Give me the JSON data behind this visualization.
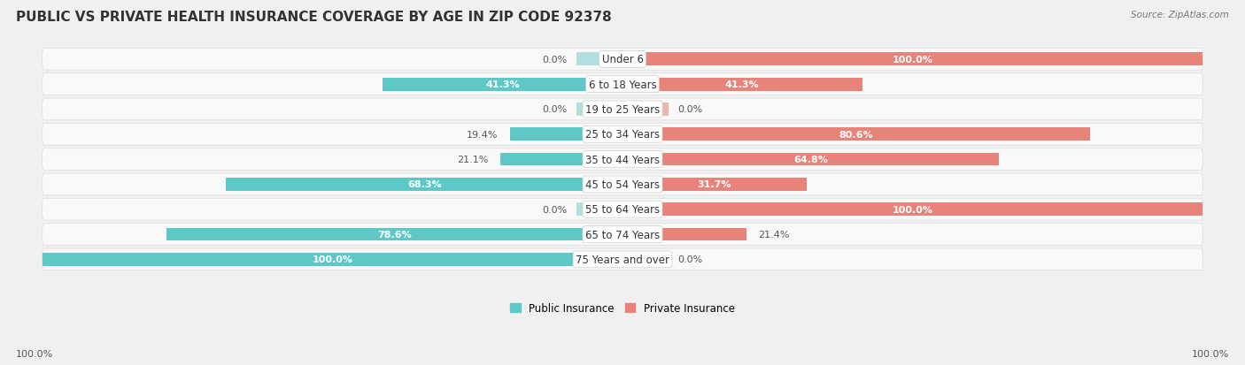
{
  "title": "PUBLIC VS PRIVATE HEALTH INSURANCE COVERAGE BY AGE IN ZIP CODE 92378",
  "source": "Source: ZipAtlas.com",
  "categories": [
    "Under 6",
    "6 to 18 Years",
    "19 to 25 Years",
    "25 to 34 Years",
    "35 to 44 Years",
    "45 to 54 Years",
    "55 to 64 Years",
    "65 to 74 Years",
    "75 Years and over"
  ],
  "public_values": [
    0.0,
    41.3,
    0.0,
    19.4,
    21.1,
    68.3,
    0.0,
    78.6,
    100.0
  ],
  "private_values": [
    100.0,
    41.3,
    0.0,
    80.6,
    64.8,
    31.7,
    100.0,
    21.4,
    0.0
  ],
  "public_color": "#5ec8c8",
  "private_color": "#e8837a",
  "public_color_light": "#b2e0e0",
  "private_color_light": "#f2b5ae",
  "background_color": "#f0f0f0",
  "row_bg_color": "#f8f8f8",
  "row_alt_color": "#efefef",
  "title_fontsize": 11,
  "label_fontsize": 8.5,
  "value_fontsize": 8,
  "legend_fontsize": 8.5,
  "source_fontsize": 7.5,
  "max_value": 100.0,
  "stub_value": 8.0
}
